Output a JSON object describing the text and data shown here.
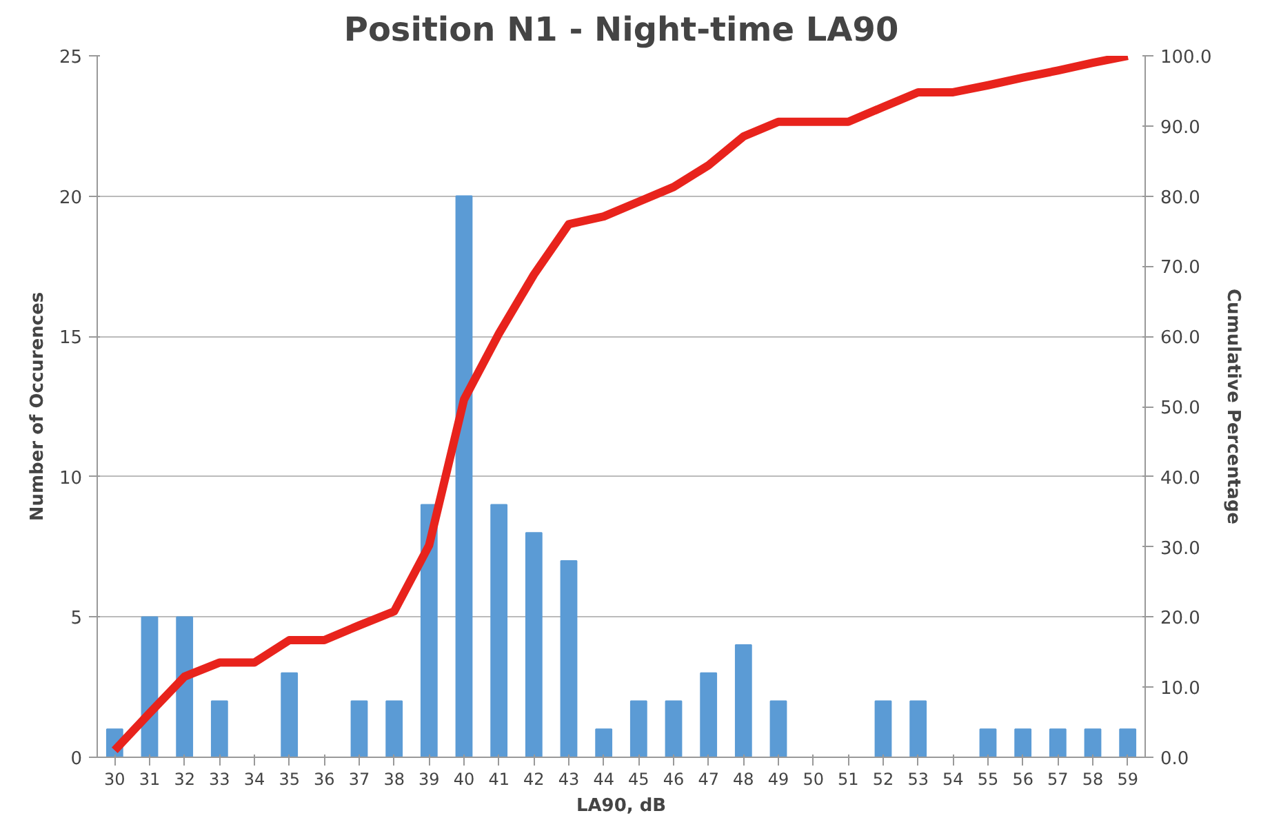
{
  "chart_data": {
    "type": "bar",
    "title": "Position N1 - Night-time LA90",
    "xlabel": "LA90, dB",
    "ylabel": "Number of Occurences",
    "y2label": "Cumulative Percentage",
    "categories": [
      "30",
      "31",
      "32",
      "33",
      "34",
      "35",
      "36",
      "37",
      "38",
      "39",
      "40",
      "41",
      "42",
      "43",
      "44",
      "45",
      "46",
      "47",
      "48",
      "49",
      "50",
      "51",
      "52",
      "53",
      "54",
      "55",
      "56",
      "57",
      "58",
      "59"
    ],
    "series": [
      {
        "color": "#5b9bd5",
        "values": [
          1,
          5,
          5,
          2,
          0,
          3,
          0,
          2,
          2,
          9,
          20,
          9,
          8,
          7,
          1,
          2,
          2,
          3,
          4,
          2,
          0,
          0,
          2,
          2,
          0,
          1,
          1,
          1,
          1,
          1
        ]
      },
      {
        "type": "line",
        "axis": "y2",
        "color": "#e8231c",
        "values": [
          1.0,
          6.3,
          11.5,
          13.5,
          13.5,
          16.7,
          16.7,
          18.8,
          20.8,
          30.2,
          51.0,
          60.4,
          68.8,
          76.0,
          77.1,
          79.2,
          81.3,
          84.4,
          88.5,
          90.6,
          90.6,
          90.6,
          92.7,
          94.8,
          94.8,
          95.8,
          96.9,
          97.9,
          99.0,
          100.0
        ]
      }
    ],
    "ylim": [
      0,
      25
    ],
    "yticks": [
      0,
      5,
      10,
      15,
      20,
      25
    ],
    "y2lim": [
      0,
      100
    ],
    "y2ticks": [
      {
        "value": 0,
        "label": "0.0"
      },
      {
        "value": 10,
        "label": "10.0"
      },
      {
        "value": 20,
        "label": "20.0"
      },
      {
        "value": 30,
        "label": "30.0"
      },
      {
        "value": 40,
        "label": "40.0"
      },
      {
        "value": 50,
        "label": "50.0"
      },
      {
        "value": 60,
        "label": "60.0"
      },
      {
        "value": 70,
        "label": "70.0"
      },
      {
        "value": 80,
        "label": "80.0"
      },
      {
        "value": 90,
        "label": "90.0"
      },
      {
        "value": 100,
        "label": "100.0"
      }
    ],
    "grid": "y",
    "marker": "none",
    "line_style": "solid"
  }
}
